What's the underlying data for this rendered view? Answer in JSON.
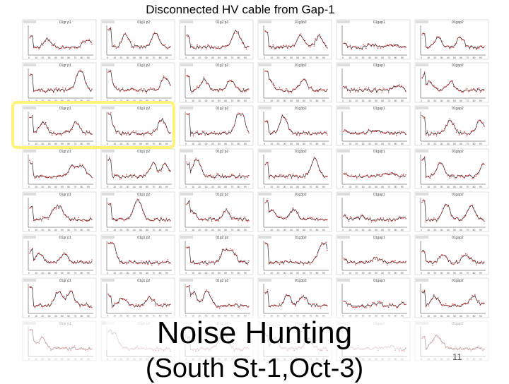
{
  "slide": {
    "title": "Disconnected HV cable from Gap-1",
    "big_title_line1": "Noise Hunting",
    "big_title_line2": "(South St-1,Oct-3)",
    "slide_number": "11",
    "highlight_color": "#fff27a"
  },
  "chart_data": {
    "type": "line",
    "layout": "grid of small multiples, 8 rows x 6 columns",
    "panel_columns": [
      "01gr p1",
      "01g1 p2",
      "01g2 p2",
      "01g3p2",
      "01gap1",
      "01gap2"
    ],
    "series_colors": {
      "primary": "#222222",
      "secondary": "#e02020"
    },
    "x_ticks": [
      "0",
      "10",
      "20",
      "30",
      "40",
      "50",
      "60",
      "70",
      "80",
      "90"
    ],
    "xlim": [
      0,
      96
    ],
    "highlighted_rows": [
      3
    ],
    "highlighted_cols": [
      1,
      2
    ]
  }
}
